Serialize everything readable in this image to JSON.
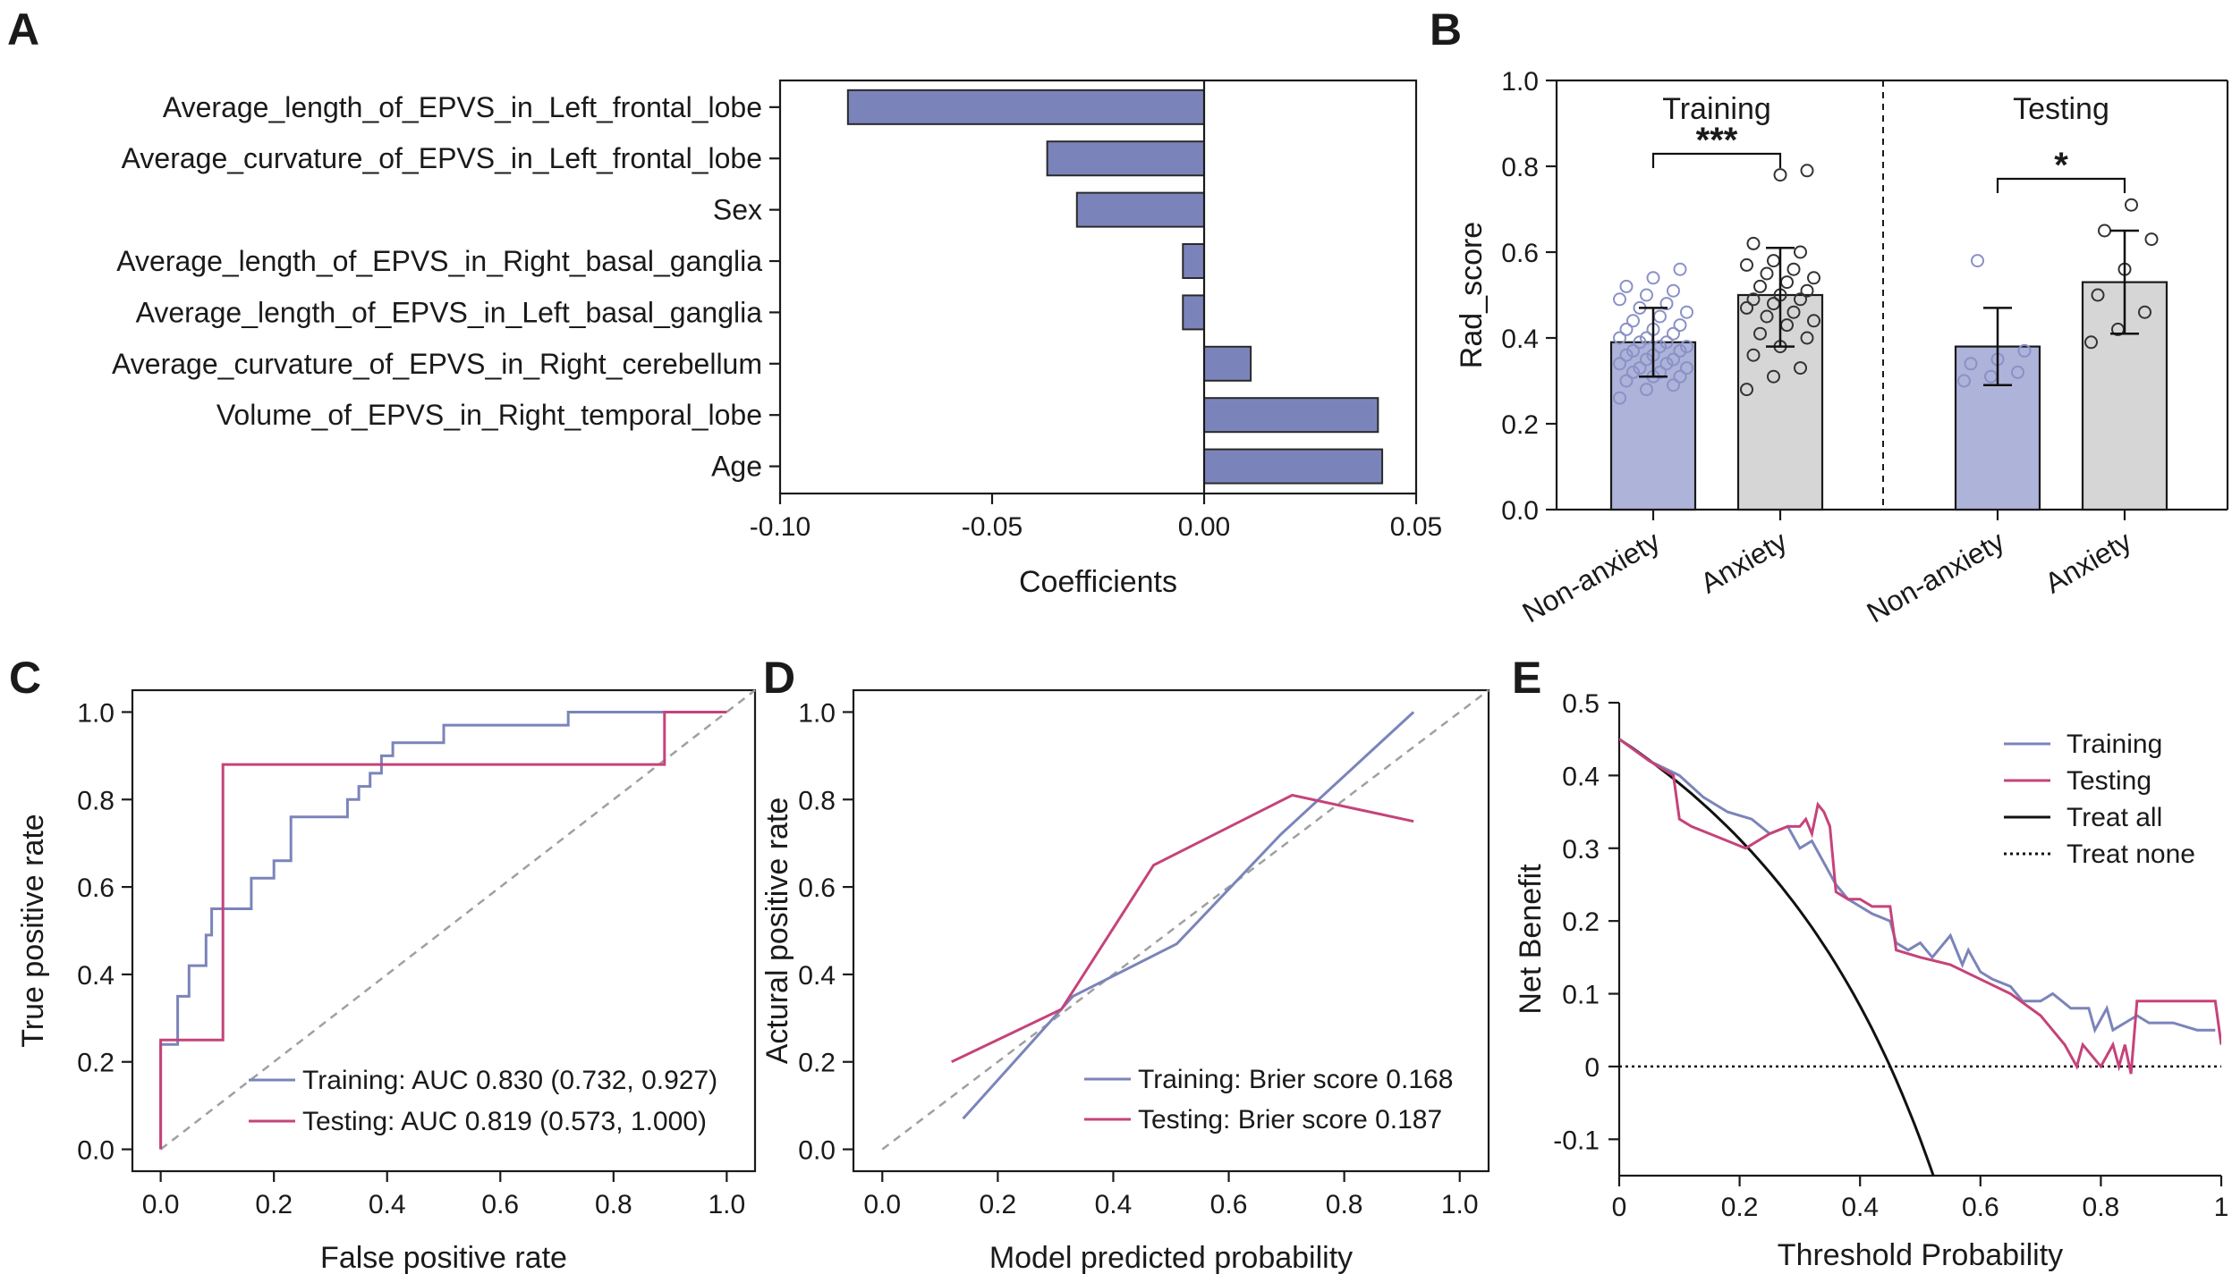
{
  "panels": {
    "A": "A",
    "B": "B",
    "C": "C",
    "D": "D",
    "E": "E"
  },
  "colors": {
    "purple": "#7B84BA",
    "pink": "#C5437A",
    "black": "#111111",
    "gray_bar": "#D6D6D6",
    "purple_bar": "#ADB3D9",
    "diagonal": "#A0A0A0"
  },
  "chart_data": [
    {
      "id": "A",
      "type": "bar",
      "orientation": "horizontal",
      "categories": [
        "Average_length_of_EPVS_in_Left_frontal_lobe",
        "Average_curvature_of_EPVS_in_Left_frontal_lobe",
        "Sex",
        "Average_length_of_EPVS_in_Right_basal_ganglia",
        "Average_length_of_EPVS_in_Left_basal_ganglia",
        "Average_curvature_of_EPVS_in_Right_cerebellum",
        "Volume_of_EPVS_in_Right_temporal_lobe",
        "Age"
      ],
      "values": [
        -0.084,
        -0.037,
        -0.03,
        -0.005,
        -0.005,
        0.011,
        0.041,
        0.042
      ],
      "xlabel": "Coefficients",
      "xlim": [
        -0.1,
        0.05
      ],
      "xticks": [
        "-0.10",
        "-0.05",
        "0.00",
        "0.05"
      ],
      "xtick_values": [
        -0.1,
        -0.05,
        0.0,
        0.05
      ]
    },
    {
      "id": "B",
      "type": "bar",
      "ylabel": "Rad_score",
      "ylim": [
        0,
        1.0
      ],
      "yticks": [
        "0.0",
        "0.2",
        "0.4",
        "0.6",
        "0.8",
        "1.0"
      ],
      "ytick_values": [
        0,
        0.2,
        0.4,
        0.6,
        0.8,
        1.0
      ],
      "groups": [
        {
          "name": "Training",
          "significance": "***"
        },
        {
          "name": "Testing",
          "significance": "*"
        }
      ],
      "bars": [
        {
          "group": 0,
          "label": "Non-anxiety",
          "mean": 0.39,
          "sd_low": 0.31,
          "sd_high": 0.47,
          "fill": "purple",
          "points": [
            0.26,
            0.28,
            0.29,
            0.3,
            0.31,
            0.31,
            0.32,
            0.32,
            0.33,
            0.33,
            0.34,
            0.34,
            0.35,
            0.35,
            0.36,
            0.36,
            0.37,
            0.37,
            0.38,
            0.38,
            0.39,
            0.39,
            0.4,
            0.4,
            0.41,
            0.42,
            0.42,
            0.43,
            0.44,
            0.45,
            0.46,
            0.47,
            0.48,
            0.49,
            0.5,
            0.51,
            0.52,
            0.54,
            0.56
          ]
        },
        {
          "group": 0,
          "label": "Anxiety",
          "mean": 0.5,
          "sd_low": 0.38,
          "sd_high": 0.61,
          "fill": "gray",
          "points": [
            0.28,
            0.31,
            0.33,
            0.36,
            0.38,
            0.4,
            0.41,
            0.43,
            0.44,
            0.45,
            0.46,
            0.47,
            0.48,
            0.49,
            0.49,
            0.5,
            0.51,
            0.52,
            0.53,
            0.54,
            0.55,
            0.56,
            0.57,
            0.58,
            0.6,
            0.62,
            0.78,
            0.79
          ]
        },
        {
          "group": 1,
          "label": "Non-anxiety",
          "mean": 0.38,
          "sd_low": 0.29,
          "sd_high": 0.47,
          "fill": "purple",
          "points": [
            0.3,
            0.31,
            0.32,
            0.34,
            0.35,
            0.37,
            0.58
          ]
        },
        {
          "group": 1,
          "label": "Anxiety",
          "mean": 0.53,
          "sd_low": 0.41,
          "sd_high": 0.65,
          "fill": "gray",
          "points": [
            0.39,
            0.42,
            0.46,
            0.5,
            0.56,
            0.63,
            0.65,
            0.71
          ]
        }
      ]
    },
    {
      "id": "C",
      "type": "line",
      "xlabel": "False positive rate",
      "ylabel": "True positive rate",
      "xlim": [
        -0.05,
        1.05
      ],
      "ylim": [
        -0.05,
        1.05
      ],
      "xticks": [
        "0.0",
        "0.2",
        "0.4",
        "0.6",
        "0.8",
        "1.0"
      ],
      "yticks": [
        "0.0",
        "0.2",
        "0.4",
        "0.6",
        "0.8",
        "1.0"
      ],
      "tick_values": [
        0,
        0.2,
        0.4,
        0.6,
        0.8,
        1.0
      ],
      "series": [
        {
          "name": "Training",
          "legend": "Training: AUC 0.830 (0.732, 0.927)",
          "color": "purple",
          "x": [
            0,
            0,
            0.03,
            0.03,
            0.05,
            0.05,
            0.08,
            0.08,
            0.09,
            0.09,
            0.16,
            0.16,
            0.2,
            0.2,
            0.23,
            0.23,
            0.25,
            0.25,
            0.33,
            0.33,
            0.35,
            0.35,
            0.37,
            0.37,
            0.39,
            0.39,
            0.41,
            0.41,
            0.5,
            0.5,
            0.72,
            0.72,
            1.0
          ],
          "y": [
            0,
            0.24,
            0.24,
            0.35,
            0.35,
            0.42,
            0.42,
            0.49,
            0.49,
            0.55,
            0.55,
            0.62,
            0.62,
            0.66,
            0.66,
            0.76,
            0.76,
            0.76,
            0.76,
            0.8,
            0.8,
            0.83,
            0.83,
            0.86,
            0.86,
            0.9,
            0.9,
            0.93,
            0.93,
            0.97,
            0.97,
            1.0,
            1.0
          ]
        },
        {
          "name": "Testing",
          "legend": "Testing: AUC 0.819 (0.573, 1.000)",
          "color": "pink",
          "x": [
            0,
            0,
            0.11,
            0.11,
            0.89,
            0.89,
            1.0
          ],
          "y": [
            0,
            0.25,
            0.25,
            0.88,
            0.88,
            1.0,
            1.0
          ]
        }
      ]
    },
    {
      "id": "D",
      "type": "line",
      "xlabel": "Model predicted probability",
      "ylabel": "Actural positive rate",
      "xlim": [
        -0.05,
        1.05
      ],
      "ylim": [
        -0.05,
        1.05
      ],
      "xticks": [
        "0.0",
        "0.2",
        "0.4",
        "0.6",
        "0.8",
        "1.0"
      ],
      "yticks": [
        "0.0",
        "0.2",
        "0.4",
        "0.6",
        "0.8",
        "1.0"
      ],
      "tick_values": [
        0,
        0.2,
        0.4,
        0.6,
        0.8,
        1.0
      ],
      "series": [
        {
          "name": "Training",
          "legend": "Training: Brier score 0.168",
          "color": "purple",
          "x": [
            0.14,
            0.33,
            0.51,
            0.69,
            0.92
          ],
          "y": [
            0.07,
            0.35,
            0.47,
            0.72,
            1.0
          ]
        },
        {
          "name": "Testing",
          "legend": "Testing: Brier score 0.187",
          "color": "pink",
          "x": [
            0.12,
            0.31,
            0.47,
            0.71,
            0.92
          ],
          "y": [
            0.2,
            0.32,
            0.65,
            0.81,
            0.75
          ]
        }
      ]
    },
    {
      "id": "E",
      "type": "line",
      "xlabel": "Threshold Probability",
      "ylabel": "Net Benefit",
      "xlim": [
        0,
        1.0
      ],
      "ylim": [
        -0.15,
        0.5
      ],
      "xticks": [
        "0",
        "0.2",
        "0.4",
        "0.6",
        "0.8",
        "1"
      ],
      "xtick_values": [
        0,
        0.2,
        0.4,
        0.6,
        0.8,
        1.0
      ],
      "yticks": [
        "-0.1",
        "0",
        "0.1",
        "0.2",
        "0.3",
        "0.4",
        "0.5"
      ],
      "ytick_values": [
        -0.1,
        0,
        0.1,
        0.2,
        0.3,
        0.4,
        0.5
      ],
      "prevalence": 0.45,
      "series": [
        {
          "name": "Training",
          "legend": "Training",
          "color": "purple",
          "x": [
            0,
            0.05,
            0.1,
            0.14,
            0.18,
            0.22,
            0.25,
            0.28,
            0.3,
            0.32,
            0.34,
            0.36,
            0.38,
            0.4,
            0.42,
            0.45,
            0.46,
            0.48,
            0.5,
            0.52,
            0.55,
            0.57,
            0.58,
            0.6,
            0.62,
            0.65,
            0.67,
            0.7,
            0.72,
            0.75,
            0.78,
            0.79,
            0.81,
            0.82,
            0.84,
            0.86,
            0.88,
            0.92,
            0.96,
            0.99
          ],
          "y": [
            0.45,
            0.42,
            0.4,
            0.37,
            0.35,
            0.34,
            0.32,
            0.33,
            0.3,
            0.31,
            0.28,
            0.25,
            0.23,
            0.22,
            0.21,
            0.2,
            0.17,
            0.16,
            0.17,
            0.15,
            0.18,
            0.14,
            0.16,
            0.13,
            0.12,
            0.11,
            0.09,
            0.09,
            0.1,
            0.08,
            0.08,
            0.05,
            0.08,
            0.05,
            0.06,
            0.07,
            0.06,
            0.06,
            0.05,
            0.05
          ]
        },
        {
          "name": "Testing",
          "legend": "Testing",
          "color": "pink",
          "x": [
            0,
            0.05,
            0.09,
            0.1,
            0.12,
            0.15,
            0.18,
            0.21,
            0.25,
            0.28,
            0.3,
            0.31,
            0.32,
            0.33,
            0.34,
            0.35,
            0.36,
            0.38,
            0.4,
            0.42,
            0.45,
            0.46,
            0.5,
            0.55,
            0.6,
            0.65,
            0.7,
            0.74,
            0.76,
            0.77,
            0.78,
            0.8,
            0.82,
            0.83,
            0.84,
            0.85,
            0.86,
            0.89,
            0.92,
            0.95,
            0.99,
            1.0
          ],
          "y": [
            0.45,
            0.42,
            0.4,
            0.34,
            0.33,
            0.32,
            0.31,
            0.3,
            0.32,
            0.33,
            0.33,
            0.34,
            0.32,
            0.36,
            0.35,
            0.33,
            0.24,
            0.23,
            0.23,
            0.22,
            0.22,
            0.16,
            0.15,
            0.14,
            0.12,
            0.1,
            0.07,
            0.03,
            0.0,
            0.03,
            0.02,
            0.0,
            0.03,
            0.0,
            0.03,
            -0.01,
            0.09,
            0.09,
            0.09,
            0.09,
            0.09,
            0.03
          ]
        },
        {
          "name": "Treat all",
          "legend": "Treat all",
          "color": "black",
          "style": "solid"
        },
        {
          "name": "Treat none",
          "legend": "Treat none",
          "color": "black",
          "style": "dotted"
        }
      ]
    }
  ]
}
